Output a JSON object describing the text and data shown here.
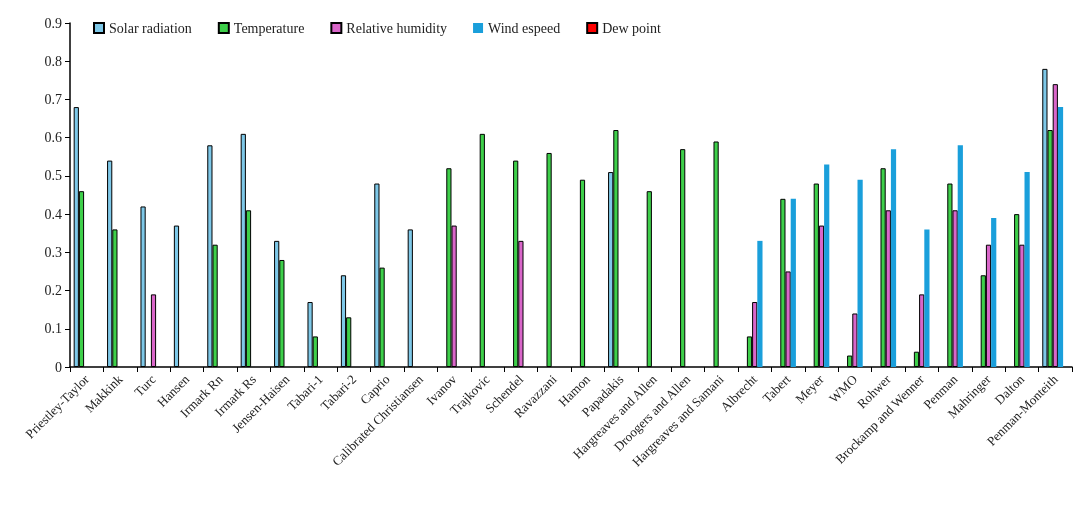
{
  "chart_data": {
    "type": "bar",
    "categories": [
      "Priestley-Taylor",
      "Makkink",
      "Turc",
      "Hansen",
      "Irmark Rn",
      "Irmark Rs",
      "Jensen-Haisen",
      "Tabari-1",
      "Tabari-2",
      "Caprio",
      "Calibrated Christiansen",
      "Ivanov",
      "Trajkovic",
      "Schendel",
      "Ravazzani",
      "Hamon",
      "Papadakis",
      "Hargreaves and Allen",
      "Droogers and Allen",
      "Hargreaves and Samani",
      "Albrecht",
      "Tabert",
      "Meyer",
      "WMO",
      "Rohwer",
      "Brockamp and Wenner",
      "Penman",
      "Mahringer",
      "Dalton",
      "Penman-Monteith"
    ],
    "series": [
      {
        "name": "Solar radiation",
        "color": "#7ec8e8",
        "values": [
          0.68,
          0.54,
          0.42,
          0.37,
          0.58,
          0.61,
          0.33,
          0.17,
          0.24,
          0.48,
          0.36,
          null,
          null,
          null,
          null,
          null,
          0.51,
          null,
          null,
          null,
          null,
          null,
          null,
          null,
          null,
          null,
          null,
          null,
          null,
          0.78
        ]
      },
      {
        "name": "Temperature",
        "color": "#3ecf4a",
        "values": [
          0.46,
          0.36,
          null,
          null,
          0.32,
          0.41,
          0.28,
          0.08,
          0.13,
          0.26,
          null,
          0.52,
          0.61,
          0.54,
          0.56,
          0.49,
          0.62,
          0.46,
          0.57,
          0.59,
          0.08,
          0.44,
          0.48,
          0.03,
          0.52,
          0.04,
          0.48,
          0.24,
          0.4,
          0.62
        ]
      },
      {
        "name": "Relative humidity",
        "color": "#d966c9",
        "values": [
          null,
          null,
          0.19,
          null,
          null,
          null,
          null,
          null,
          null,
          null,
          null,
          0.37,
          null,
          0.33,
          null,
          null,
          null,
          null,
          null,
          null,
          0.17,
          0.25,
          0.37,
          0.14,
          0.41,
          0.19,
          0.41,
          0.32,
          0.32,
          0.74
        ]
      },
      {
        "name": "Wind espeed",
        "color": "#1a9fdb",
        "values": [
          null,
          null,
          null,
          null,
          null,
          null,
          null,
          null,
          null,
          null,
          null,
          null,
          null,
          null,
          null,
          null,
          null,
          null,
          null,
          null,
          0.33,
          0.44,
          0.53,
          0.49,
          0.57,
          0.36,
          0.58,
          0.39,
          0.51,
          0.68
        ]
      },
      {
        "name": "Dew point",
        "color": "#ff0000",
        "values": [
          null,
          null,
          null,
          null,
          null,
          null,
          null,
          null,
          null,
          null,
          null,
          null,
          null,
          null,
          null,
          null,
          null,
          null,
          null,
          null,
          null,
          null,
          null,
          null,
          null,
          null,
          null,
          null,
          null,
          null
        ]
      }
    ],
    "ylim": [
      0,
      0.9
    ],
    "yticks": [
      0,
      0.1,
      0.2,
      0.3,
      0.4,
      0.5,
      0.6,
      0.7,
      0.8,
      0.9
    ],
    "grid": false,
    "legend": "top left"
  }
}
